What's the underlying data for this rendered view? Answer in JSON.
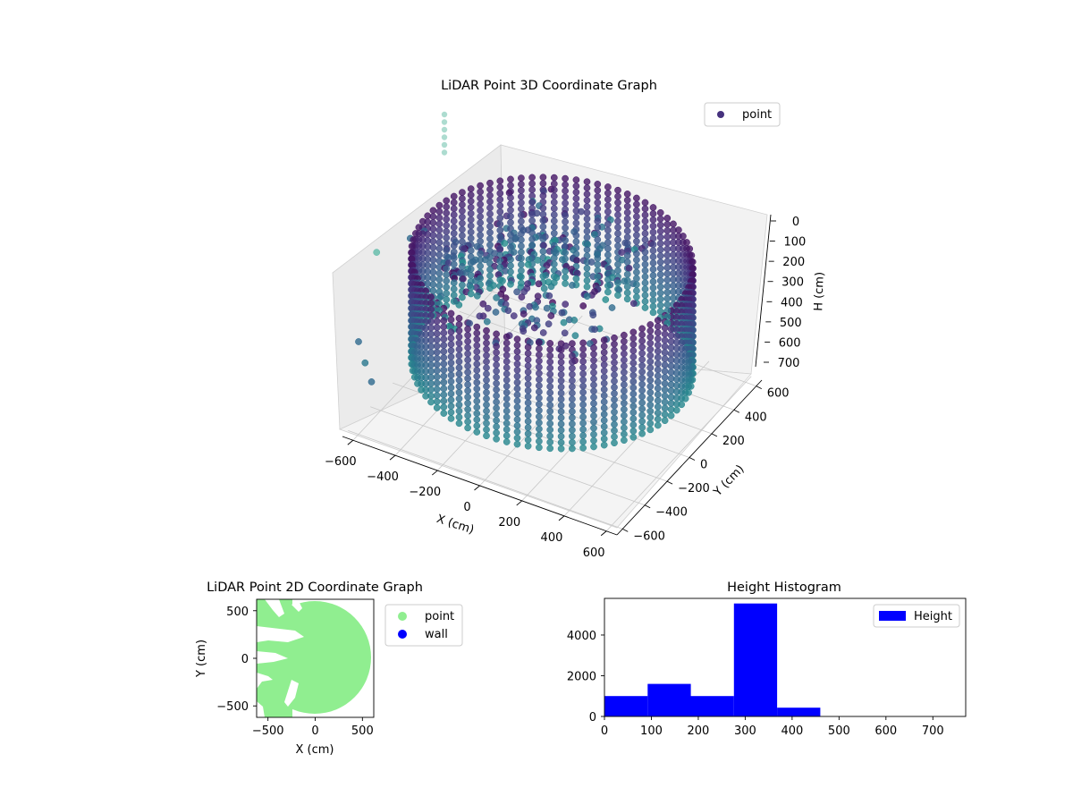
{
  "colors": {
    "viridis_dark": "#440154",
    "viridis_mid": "#2a788e",
    "viridis_light": "#7fd0b8",
    "green_points": "#90ee90",
    "wall_blue": "#0000ff",
    "hist_blue": "#0000ff"
  },
  "chart_data": [
    {
      "type": "scatter",
      "projection": "3d",
      "title": "LiDAR Point 3D Coordinate Graph",
      "xlabel": "X (cm)",
      "ylabel": "Y (cm)",
      "zlabel": "H (cm)",
      "x_ticks": [
        "−600",
        "−400",
        "−200",
        "0",
        "200",
        "400",
        "600"
      ],
      "y_ticks": [
        "−600",
        "−400",
        "−200",
        "0",
        "200",
        "400",
        "600"
      ],
      "z_ticks": [
        "0",
        "100",
        "200",
        "300",
        "400",
        "500",
        "600",
        "700"
      ],
      "xlim": [
        -650,
        650
      ],
      "ylim": [
        -650,
        650
      ],
      "zlim": [
        0,
        750
      ],
      "z_inverted": true,
      "legend": [
        "point"
      ],
      "legend_position": "upper right",
      "colormap": "viridis",
      "series": [
        {
          "name": "point",
          "description_shape": "cylindrical wall of radius ~600 cm with interior clutter"
        }
      ]
    },
    {
      "type": "scatter",
      "title": "LiDAR Point 2D Coordinate Graph",
      "xlabel": "X (cm)",
      "ylabel": "Y (cm)",
      "x_ticks": [
        "−500",
        "0",
        "500"
      ],
      "y_ticks": [
        "500",
        "0",
        "−500"
      ],
      "xlim": [
        -620,
        620
      ],
      "ylim": [
        -620,
        620
      ],
      "legend": [
        "point",
        "wall"
      ],
      "legend_position": "outside right",
      "series": [
        {
          "name": "point",
          "color": "#90ee90"
        },
        {
          "name": "wall",
          "color": "#0000ff"
        }
      ]
    },
    {
      "type": "bar",
      "title": "Height Histogram",
      "x_ticks": [
        "0",
        "100",
        "200",
        "300",
        "400",
        "500",
        "600",
        "700"
      ],
      "y_ticks": [
        "0",
        "2000",
        "4000"
      ],
      "xlim": [
        0,
        770
      ],
      "ylim": [
        0,
        5800
      ],
      "bins": [
        {
          "start": 0,
          "end": 92,
          "count": 1000
        },
        {
          "start": 92,
          "end": 184,
          "count": 1600
        },
        {
          "start": 184,
          "end": 276,
          "count": 1000
        },
        {
          "start": 276,
          "end": 368,
          "count": 5550
        },
        {
          "start": 368,
          "end": 460,
          "count": 430
        },
        {
          "start": 460,
          "end": 552,
          "count": 0
        },
        {
          "start": 552,
          "end": 644,
          "count": 0
        },
        {
          "start": 644,
          "end": 736,
          "count": 0
        }
      ],
      "legend": [
        "Height"
      ],
      "legend_position": "upper right"
    }
  ]
}
